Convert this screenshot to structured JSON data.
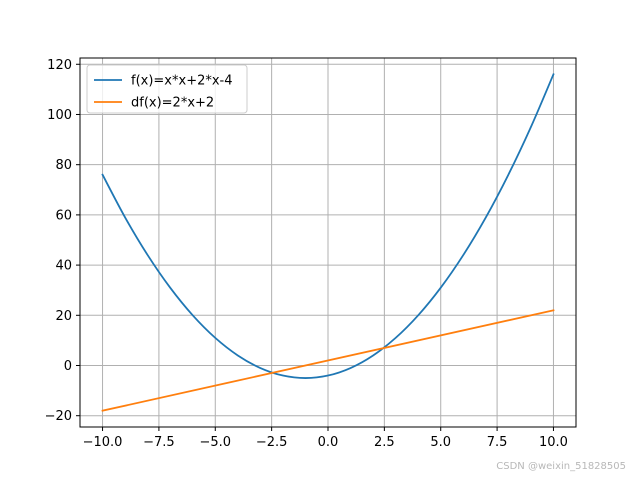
{
  "chart_data": {
    "type": "line",
    "x_range": [
      -10,
      10
    ],
    "xlim": [
      -11,
      11
    ],
    "ylim": [
      -24.5,
      122.5
    ],
    "grid": true,
    "legend_position": "top-left",
    "x_ticks": [
      -10,
      -7.5,
      -5,
      -2.5,
      0,
      2.5,
      5,
      7.5,
      10
    ],
    "x_tick_labels": [
      "−10.0",
      "−7.5",
      "−5.0",
      "−2.5",
      "0.0",
      "2.5",
      "5.0",
      "7.5",
      "10.0"
    ],
    "y_ticks": [
      -20,
      0,
      20,
      40,
      60,
      80,
      100,
      120
    ],
    "y_tick_labels": [
      "−20",
      "0",
      "20",
      "40",
      "60",
      "80",
      "100",
      "120"
    ],
    "series": [
      {
        "name": "f(x)=x*x+2*x-4",
        "color": "#1f77b4",
        "x": [
          -10,
          -9,
          -8,
          -7,
          -6,
          -5,
          -4,
          -3,
          -2,
          -1,
          0,
          1,
          2,
          3,
          4,
          5,
          6,
          7,
          8,
          9,
          10
        ],
        "y": [
          76,
          59,
          44,
          31,
          20,
          11,
          4,
          -1,
          -4,
          -5,
          -4,
          -1,
          4,
          11,
          20,
          31,
          44,
          59,
          76,
          95,
          116
        ]
      },
      {
        "name": "df(x)=2*x+2",
        "color": "#ff7f0e",
        "x": [
          -10,
          10
        ],
        "y": [
          -18,
          22
        ]
      }
    ]
  },
  "watermark": "CSDN @weixin_51828505"
}
